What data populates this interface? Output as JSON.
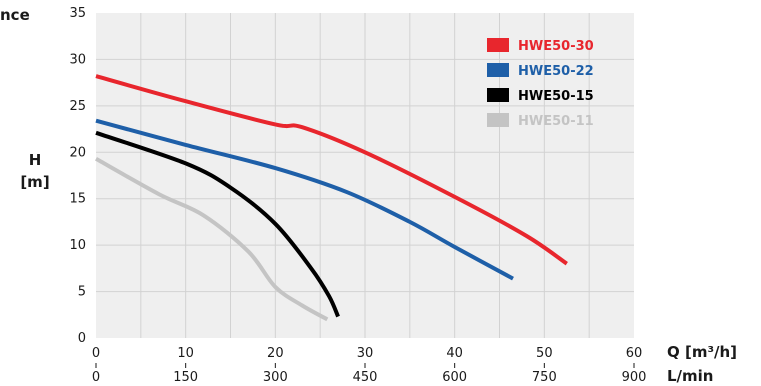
{
  "chart_data": {
    "type": "line",
    "title": "nce",
    "ylabel_line1": "H",
    "ylabel_line2": "[m]",
    "xlabel_q": "Q [m³/h]",
    "xlabel_l": "L/min",
    "ylim": [
      0,
      35
    ],
    "xlim": [
      0,
      60
    ],
    "yticks": [
      "0",
      "5",
      "10",
      "15",
      "20",
      "25",
      "30",
      "35"
    ],
    "xticks_q": [
      "0",
      "10",
      "20",
      "30",
      "40",
      "50",
      "60"
    ],
    "xticks_l": [
      "0",
      "150",
      "300",
      "450",
      "600",
      "750",
      "900"
    ],
    "legend_position": "top-right",
    "series": [
      {
        "name": "HWE50-30",
        "color": "#e8262d",
        "x": [
          0,
          10,
          20,
          23,
          30,
          40,
          48,
          52.5
        ],
        "y": [
          28.2,
          25.5,
          23,
          22.7,
          20,
          15.2,
          11,
          8
        ]
      },
      {
        "name": "HWE50-22",
        "color": "#1e5fa8",
        "x": [
          0,
          10,
          20,
          28,
          35,
          40,
          46.5
        ],
        "y": [
          23.4,
          20.8,
          18.3,
          15.7,
          12.5,
          9.8,
          6.4
        ]
      },
      {
        "name": "HWE50-15",
        "color": "#000000",
        "x": [
          0,
          10,
          15,
          20,
          24,
          26,
          27
        ],
        "y": [
          22.1,
          18.8,
          16.2,
          12.3,
          7.5,
          4.5,
          2.3
        ]
      },
      {
        "name": "HWE50-11",
        "color": "#c4c4c4",
        "x": [
          0,
          7,
          12,
          17,
          20,
          23,
          25.8
        ],
        "y": [
          19.3,
          15.5,
          13.2,
          9.3,
          5.5,
          3.5,
          2.0
        ]
      }
    ]
  }
}
